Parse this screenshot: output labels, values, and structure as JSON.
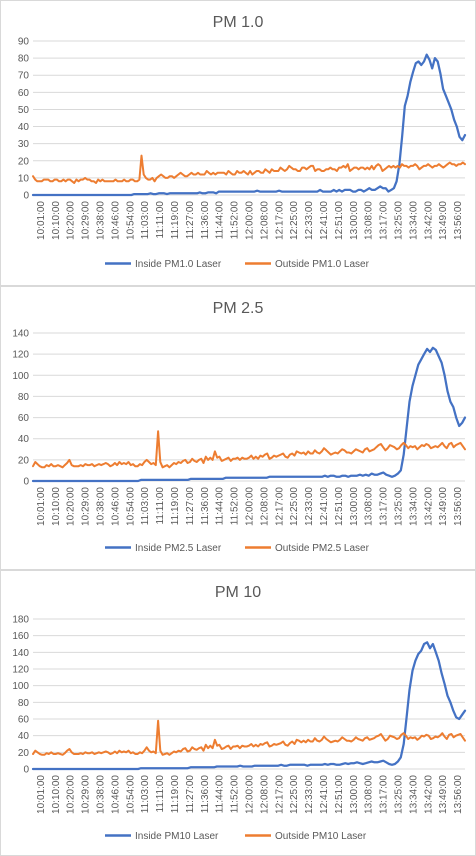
{
  "colors": {
    "inside": "#4472c4",
    "outside": "#ed7d31",
    "grid": "#d9d9d9",
    "text": "#595959"
  },
  "time_labels": [
    "10:01:00",
    "10:10:00",
    "10:20:00",
    "10:29:00",
    "10:38:00",
    "10:46:00",
    "10:54:00",
    "11:03:00",
    "11:11:00",
    "11:19:00",
    "11:27:00",
    "11:36:00",
    "11:44:00",
    "11:52:00",
    "12:00:00",
    "12:08:00",
    "12:17:00",
    "12:25:00",
    "12:33:00",
    "12:41:00",
    "12:51:00",
    "13:00:00",
    "13:08:00",
    "13:17:00",
    "13:25:00",
    "13:34:00",
    "13:42:00",
    "13:49:00",
    "13:56:00"
  ],
  "chart_data": [
    {
      "type": "line",
      "title": "PM 1.0",
      "ylim": [
        0,
        90
      ],
      "yticks": [
        0,
        10,
        20,
        30,
        40,
        50,
        60,
        70,
        80,
        90
      ],
      "legend_position": "bottom",
      "grid": true,
      "series": [
        {
          "name": "Inside PM1.0 Laser",
          "values": [
            0,
            0,
            0,
            0,
            0,
            0,
            0,
            0,
            0,
            0,
            0,
            0,
            0,
            0,
            0,
            0,
            0,
            0,
            0,
            0,
            0,
            0,
            0,
            0,
            0,
            0,
            0,
            0,
            0,
            0,
            0,
            0,
            0,
            0,
            0,
            0,
            0,
            0.5,
            0.5,
            0.5,
            0.5,
            0.5,
            0.5,
            1,
            0.5,
            0.5,
            1,
            1,
            1,
            0.5,
            1,
            1,
            1,
            1,
            1,
            1,
            1,
            1,
            1,
            1,
            1,
            1.5,
            1,
            1,
            1.5,
            1.5,
            1.5,
            1,
            2,
            2,
            2,
            2,
            2,
            2,
            2,
            2,
            2,
            2,
            2,
            2,
            2,
            2,
            2.5,
            2,
            2,
            2,
            2,
            2,
            2,
            2,
            2.5,
            2,
            2,
            2,
            2,
            2,
            2,
            2,
            2,
            2,
            2,
            2,
            2,
            2,
            2,
            3,
            2,
            2,
            2,
            2,
            3,
            2,
            3,
            2,
            3,
            3,
            3,
            2,
            2,
            3,
            3,
            2,
            3,
            4,
            3,
            3,
            4,
            5,
            4,
            4,
            2,
            3,
            4,
            8,
            18,
            34,
            52,
            58,
            66,
            72,
            77,
            78,
            76,
            78,
            82,
            79,
            74,
            80,
            78,
            71,
            62,
            58,
            54,
            50,
            44,
            40,
            34,
            32,
            35
          ]
        },
        {
          "name": "Outside PM1.0 Laser",
          "values": [
            11,
            9,
            8,
            8,
            8,
            9,
            9,
            9,
            8,
            8,
            9,
            9,
            8,
            8,
            9,
            8,
            9,
            9,
            8,
            7,
            9,
            8,
            9,
            9,
            10,
            9,
            9,
            8,
            8,
            7,
            9,
            8,
            9,
            8,
            8,
            8,
            8,
            8,
            9,
            8,
            8,
            8,
            9,
            8,
            8,
            9,
            9,
            8,
            8,
            9,
            23,
            12,
            10,
            9,
            9,
            10,
            8,
            10,
            11,
            12,
            11,
            10,
            10,
            11,
            11,
            10,
            11,
            12,
            13,
            12,
            11,
            11,
            12,
            13,
            12,
            12,
            13,
            12,
            12,
            12,
            14,
            13,
            12,
            13,
            12,
            13,
            13,
            13,
            13,
            12,
            14,
            13,
            12,
            12,
            14,
            13,
            13,
            14,
            13,
            12,
            14,
            12,
            13,
            14,
            14,
            13,
            13,
            15,
            14,
            13,
            15,
            14,
            14,
            14,
            16,
            15,
            14,
            15,
            17,
            16,
            15,
            15,
            14,
            14,
            16,
            16,
            15,
            16,
            17,
            17,
            14,
            15,
            15,
            14,
            14,
            15,
            15,
            16,
            15,
            15,
            14,
            16,
            16,
            17,
            16,
            18,
            14,
            15,
            16,
            16,
            15,
            16,
            16,
            15,
            16,
            15,
            17,
            15,
            17,
            18,
            17,
            14,
            15,
            16,
            17,
            16,
            17,
            16,
            17,
            16,
            18,
            17,
            17,
            16,
            17,
            17,
            18,
            17,
            15,
            16,
            17,
            17,
            18,
            17,
            16,
            17,
            17,
            18,
            17,
            16,
            17,
            18,
            19,
            18,
            18,
            17,
            18,
            18,
            19,
            18
          ]
        }
      ]
    },
    {
      "type": "line",
      "title": "PM 2.5",
      "ylim": [
        0,
        140
      ],
      "yticks": [
        0,
        20,
        40,
        60,
        80,
        100,
        120,
        140
      ],
      "legend_position": "bottom",
      "grid": true,
      "series": [
        {
          "name": "Inside PM2.5 Laser",
          "values": [
            0,
            0,
            0,
            0,
            0,
            0,
            0,
            0,
            0,
            0,
            0,
            0,
            0,
            0,
            0,
            0,
            0,
            0,
            0,
            0,
            0,
            0,
            0,
            0,
            0,
            0,
            0,
            0,
            0,
            0,
            0,
            0,
            0,
            0,
            0,
            0,
            0,
            1,
            1,
            1,
            1,
            1,
            1,
            1,
            1,
            1,
            1,
            1,
            1,
            1,
            1,
            1,
            1,
            1,
            2,
            2,
            2,
            2,
            2,
            2,
            2,
            2,
            2,
            2,
            2,
            2,
            3,
            3,
            3,
            3,
            3,
            3,
            3,
            3,
            3,
            3,
            3,
            3,
            3,
            3,
            3,
            4,
            4,
            4,
            4,
            4,
            4,
            4,
            4,
            4,
            4,
            4,
            4,
            4,
            4,
            4,
            4,
            4,
            4,
            4,
            5,
            4,
            5,
            5,
            4,
            4,
            5,
            5,
            4,
            5,
            5,
            5,
            6,
            5,
            6,
            5,
            7,
            6,
            6,
            7,
            8,
            6,
            5,
            4,
            5,
            7,
            10,
            25,
            50,
            75,
            90,
            100,
            110,
            115,
            120,
            125,
            122,
            126,
            124,
            118,
            112,
            100,
            85,
            75,
            70,
            60,
            52,
            55,
            60
          ]
        },
        {
          "name": "Outside PM2.5 Laser",
          "values": [
            14,
            18,
            16,
            14,
            13,
            13,
            15,
            14,
            16,
            14,
            14,
            15,
            14,
            13,
            15,
            17,
            20,
            15,
            14,
            14,
            14,
            15,
            14,
            16,
            15,
            15,
            16,
            14,
            15,
            16,
            15,
            16,
            17,
            16,
            14,
            15,
            17,
            15,
            18,
            16,
            17,
            16,
            18,
            15,
            16,
            14,
            14,
            16,
            15,
            18,
            20,
            18,
            16,
            17,
            15,
            47,
            18,
            13,
            14,
            15,
            13,
            15,
            17,
            16,
            18,
            17,
            19,
            20,
            17,
            18,
            21,
            19,
            18,
            20,
            21,
            17,
            23,
            20,
            22,
            20,
            28,
            22,
            23,
            19,
            20,
            21,
            22,
            19,
            21,
            21,
            22,
            20,
            22,
            21,
            21,
            22,
            24,
            21,
            23,
            21,
            24,
            23,
            25,
            26,
            21,
            22,
            24,
            23,
            24,
            25,
            26,
            23,
            22,
            25,
            26,
            24,
            28,
            27,
            26,
            27,
            25,
            28,
            26,
            26,
            29,
            27,
            26,
            28,
            31,
            29,
            27,
            25,
            26,
            27,
            26,
            28,
            30,
            29,
            27,
            27,
            26,
            28,
            30,
            29,
            28,
            27,
            30,
            31,
            28,
            29,
            30,
            32,
            34,
            35,
            32,
            29,
            31,
            34,
            33,
            32,
            30,
            31,
            34,
            36,
            34,
            31,
            33,
            32,
            33,
            30,
            32,
            34,
            33,
            35,
            34,
            31,
            32,
            33,
            32,
            34,
            36,
            33,
            31,
            35,
            36,
            32,
            34,
            35,
            36,
            33,
            30
          ]
        }
      ]
    },
    {
      "type": "line",
      "title": "PM 10",
      "ylim": [
        0,
        180
      ],
      "yticks": [
        0,
        20,
        40,
        60,
        80,
        100,
        120,
        140,
        160,
        180
      ],
      "legend_position": "bottom",
      "grid": true,
      "series": [
        {
          "name": "Inside PM10 Laser",
          "values": [
            0,
            0,
            0,
            0,
            0,
            0,
            0,
            0,
            0,
            0,
            0,
            0,
            0,
            0,
            0,
            0,
            0,
            0,
            0,
            0,
            0,
            0,
            0,
            0,
            0,
            0,
            0,
            0,
            0,
            0,
            0,
            0,
            0,
            0,
            0,
            0,
            0,
            1,
            1,
            1,
            1,
            1,
            1,
            1,
            1,
            1,
            1,
            1,
            1,
            1,
            1,
            1,
            1,
            1,
            2,
            2,
            2,
            2,
            2,
            2,
            2,
            2,
            2,
            3,
            3,
            3,
            3,
            3,
            3,
            3,
            3,
            4,
            3,
            3,
            3,
            3,
            4,
            4,
            4,
            4,
            4,
            4,
            4,
            4,
            4,
            5,
            4,
            4,
            5,
            5,
            5,
            5,
            5,
            5,
            4,
            5,
            5,
            5,
            5,
            5,
            6,
            5,
            6,
            6,
            5,
            5,
            6,
            7,
            6,
            7,
            7,
            8,
            7,
            6,
            7,
            8,
            9,
            8,
            8,
            9,
            10,
            8,
            6,
            5,
            6,
            9,
            14,
            30,
            62,
            95,
            118,
            130,
            138,
            142,
            150,
            152,
            145,
            150,
            140,
            130,
            115,
            102,
            88,
            80,
            70,
            62,
            60,
            65,
            70
          ]
        },
        {
          "name": "Outside PM10 Laser",
          "values": [
            18,
            22,
            20,
            18,
            17,
            17,
            19,
            18,
            20,
            18,
            18,
            19,
            18,
            17,
            19,
            22,
            24,
            20,
            18,
            18,
            18,
            19,
            18,
            20,
            19,
            19,
            20,
            18,
            19,
            20,
            19,
            20,
            21,
            20,
            18,
            19,
            21,
            19,
            22,
            20,
            21,
            20,
            22,
            19,
            20,
            18,
            18,
            20,
            19,
            22,
            26,
            22,
            20,
            21,
            19,
            58,
            22,
            17,
            18,
            19,
            17,
            19,
            21,
            20,
            22,
            21,
            24,
            25,
            21,
            22,
            26,
            24,
            23,
            25,
            26,
            22,
            29,
            25,
            28,
            25,
            35,
            28,
            29,
            24,
            25,
            27,
            28,
            24,
            27,
            27,
            28,
            25,
            28,
            27,
            27,
            28,
            30,
            27,
            29,
            27,
            30,
            29,
            31,
            32,
            27,
            28,
            30,
            29,
            30,
            31,
            33,
            29,
            28,
            31,
            33,
            30,
            35,
            34,
            32,
            34,
            32,
            35,
            33,
            33,
            37,
            34,
            33,
            35,
            39,
            36,
            34,
            32,
            33,
            34,
            33,
            35,
            38,
            36,
            34,
            34,
            33,
            35,
            38,
            36,
            35,
            34,
            37,
            38,
            35,
            36,
            37,
            39,
            40,
            42,
            38,
            34,
            36,
            40,
            39,
            38,
            36,
            37,
            41,
            43,
            40,
            36,
            38,
            37,
            38,
            35,
            37,
            40,
            39,
            41,
            40,
            36,
            37,
            39,
            38,
            40,
            43,
            39,
            36,
            41,
            42,
            38,
            40,
            41,
            42,
            38,
            34
          ]
        }
      ]
    }
  ]
}
